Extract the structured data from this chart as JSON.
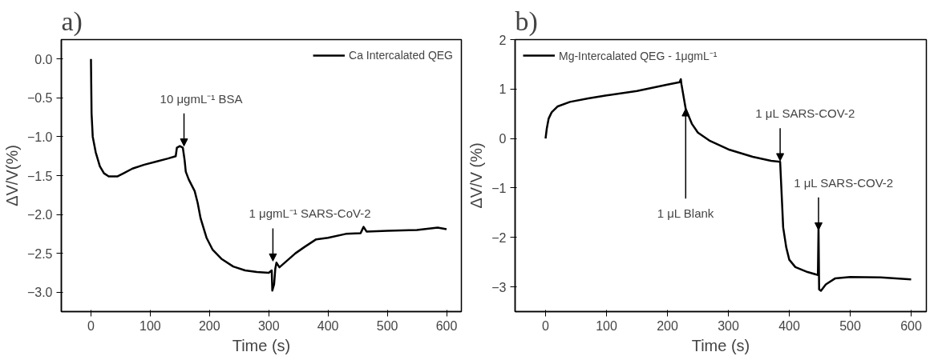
{
  "chart_data": [
    {
      "type": "line",
      "title": "a)",
      "xlabel": "Time (s)",
      "ylabel": "ΔV/V(%)",
      "legend": "top right",
      "marker": "none",
      "line_style": "solid",
      "grid": false,
      "xlim": [
        -50,
        625
      ],
      "xticks": [
        0,
        100,
        200,
        300,
        400,
        500,
        600
      ],
      "ylim": [
        -3.25,
        0.25
      ],
      "yticks": [
        {
          "value": -3.0,
          "label": "−3.0"
        },
        {
          "value": -2.5,
          "label": "−2.5"
        },
        {
          "value": -2.0,
          "label": "−2.0"
        },
        {
          "value": -1.5,
          "label": "−1.5"
        },
        {
          "value": -1.0,
          "label": "−1.0"
        },
        {
          "value": -0.5,
          "label": "−0.5"
        },
        {
          "value": 0.0,
          "label": "0.0"
        }
      ],
      "series": [
        {
          "name": "Ca Intercalated QEG",
          "color": "#000000",
          "x": [
            0,
            1,
            3,
            8,
            15,
            22,
            30,
            45,
            55,
            70,
            90,
            110,
            130,
            143,
            145,
            150,
            155,
            158,
            160,
            165,
            175,
            180,
            185,
            195,
            205,
            220,
            240,
            260,
            280,
            300,
            305,
            306,
            309,
            311,
            313,
            318,
            330,
            345,
            360,
            380,
            400,
            430,
            455,
            460,
            465,
            500,
            550,
            585,
            600
          ],
          "values": [
            0.0,
            -0.7,
            -1.0,
            -1.2,
            -1.38,
            -1.47,
            -1.51,
            -1.51,
            -1.47,
            -1.41,
            -1.36,
            -1.32,
            -1.28,
            -1.25,
            -1.14,
            -1.12,
            -1.14,
            -1.3,
            -1.45,
            -1.55,
            -1.7,
            -1.85,
            -2.05,
            -2.3,
            -2.45,
            -2.57,
            -2.67,
            -2.72,
            -2.74,
            -2.75,
            -2.72,
            -2.98,
            -2.9,
            -2.7,
            -2.62,
            -2.68,
            -2.6,
            -2.5,
            -2.42,
            -2.32,
            -2.3,
            -2.25,
            -2.24,
            -2.16,
            -2.22,
            -2.21,
            -2.2,
            -2.17,
            -2.19
          ]
        }
      ],
      "annotations": [
        {
          "text": "10 μgmL⁻¹ BSA",
          "x": 157,
          "y": -1.12
        },
        {
          "text": "1 μgmL⁻¹ SARS-CoV-2",
          "x": 307,
          "y": -2.6
        }
      ]
    },
    {
      "type": "line",
      "title": "b)",
      "xlabel": "Time (s)",
      "ylabel": "ΔV/V (%)",
      "legend": "top left",
      "marker": "none",
      "line_style": "solid",
      "grid": false,
      "xlim": [
        -50,
        625
      ],
      "xticks": [
        0,
        100,
        200,
        300,
        400,
        500,
        600
      ],
      "ylim": [
        -3.5,
        2
      ],
      "yticks": [
        {
          "value": -3,
          "label": "−3"
        },
        {
          "value": -2,
          "label": "−2"
        },
        {
          "value": -1,
          "label": "−1"
        },
        0,
        1,
        2
      ],
      "series": [
        {
          "name": "Mg-Intercalated QEG - 1μgmL⁻¹",
          "color": "#000000",
          "x": [
            0,
            2,
            5,
            10,
            20,
            40,
            70,
            100,
            150,
            200,
            220,
            222,
            223,
            230,
            240,
            250,
            270,
            300,
            340,
            370,
            385,
            387,
            390,
            395,
            400,
            410,
            430,
            447,
            448,
            449,
            452,
            460,
            475,
            500,
            550,
            600
          ],
          "values": [
            0.0,
            0.2,
            0.4,
            0.53,
            0.65,
            0.74,
            0.81,
            0.87,
            0.96,
            1.09,
            1.14,
            1.2,
            1.1,
            0.6,
            0.3,
            0.12,
            -0.05,
            -0.22,
            -0.37,
            -0.45,
            -0.47,
            -1.0,
            -1.8,
            -2.2,
            -2.45,
            -2.6,
            -2.7,
            -2.76,
            -1.8,
            -3.05,
            -3.08,
            -2.95,
            -2.83,
            -2.8,
            -2.81,
            -2.85
          ]
        }
      ],
      "annotations": [
        {
          "text": "1 μL Blank",
          "x": 230,
          "y": 0.6
        },
        {
          "text": "1 μL SARS-COV-2",
          "x": 385,
          "y": -0.45
        },
        {
          "text": "1 μL SARS-COV-2",
          "x": 448,
          "y": -1.85
        }
      ]
    }
  ]
}
